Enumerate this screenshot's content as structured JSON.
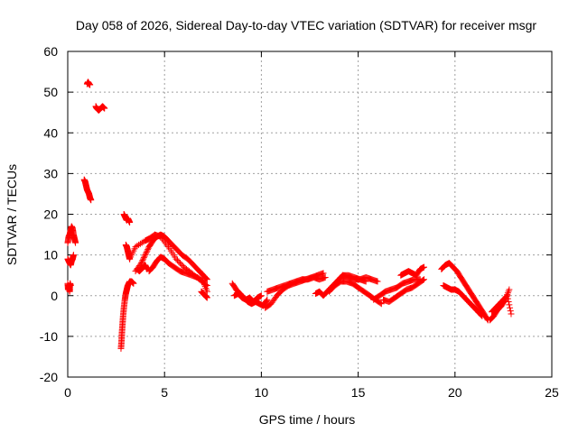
{
  "chart_data": {
    "type": "scatter",
    "title": "Day 058 of 2026, Sidereal Day-to-day VTEC variation (SDTVAR) for receiver msgr",
    "xlabel": "GPS time / hours",
    "ylabel": "SDTVAR / TECUs",
    "xlim": [
      0,
      25
    ],
    "ylim": [
      -20,
      60
    ],
    "xticks": [
      0,
      5,
      10,
      15,
      20,
      25
    ],
    "yticks": [
      -20,
      -10,
      0,
      10,
      20,
      30,
      40,
      50,
      60
    ],
    "grid": true,
    "marker": "+",
    "color": "#ff0000",
    "segments": [
      {
        "name": "arc-early-low",
        "x": [
          0.0,
          0.02,
          0.05,
          0.08,
          0.1,
          0.12,
          0.15
        ],
        "y": [
          3,
          1.5,
          2.5,
          2,
          1,
          3,
          2.5
        ]
      },
      {
        "name": "arc-early-mid",
        "x": [
          0.0,
          0.05,
          0.1,
          0.15,
          0.2,
          0.25,
          0.3
        ],
        "y": [
          9,
          8.5,
          8,
          7.5,
          8.5,
          9,
          10
        ]
      },
      {
        "name": "arc-early-high",
        "x": [
          0.0,
          0.05,
          0.1,
          0.15,
          0.2,
          0.25,
          0.3,
          0.35,
          0.4
        ],
        "y": [
          13,
          14.5,
          15,
          16,
          17,
          16.5,
          15,
          14,
          13
        ]
      },
      {
        "name": "arc-52",
        "x": [
          1.0,
          1.05,
          1.1,
          1.15
        ],
        "y": [
          52,
          52.5,
          52,
          51.8
        ]
      },
      {
        "name": "arc-28",
        "x": [
          0.85,
          0.9,
          0.95,
          1.0,
          1.05,
          1.1,
          1.15,
          1.2
        ],
        "y": [
          28.5,
          28,
          27,
          26,
          25.5,
          25,
          24,
          23.5
        ]
      },
      {
        "name": "arc-46",
        "x": [
          1.45,
          1.5,
          1.6,
          1.7,
          1.8,
          1.9
        ],
        "y": [
          46.5,
          46,
          45.5,
          46,
          46.5,
          46
        ]
      },
      {
        "name": "arc-19",
        "x": [
          2.9,
          2.95,
          3.0,
          3.05,
          3.1,
          3.15,
          3.2
        ],
        "y": [
          20,
          19.5,
          19,
          18.5,
          19,
          18.5,
          18
        ]
      },
      {
        "name": "arc-drop",
        "x": [
          2.75,
          2.78,
          2.8,
          2.83,
          2.86,
          2.9,
          2.95,
          3.0,
          3.05,
          3.1,
          3.2,
          3.3,
          3.4
        ],
        "y": [
          -13,
          -11,
          -9,
          -7,
          -5,
          -3,
          -1,
          0.5,
          1.5,
          2.5,
          3.5,
          3.5,
          3
        ]
      },
      {
        "name": "arc-12",
        "x": [
          3.0,
          3.05,
          3.1,
          3.15,
          3.2
        ],
        "y": [
          12.5,
          12,
          11,
          10,
          9
        ]
      },
      {
        "name": "arc-big-hump",
        "x": [
          3.5,
          3.8,
          4.0,
          4.2,
          4.4,
          4.6,
          4.8,
          5.0,
          5.3,
          5.6,
          5.9,
          6.2,
          6.5,
          6.8,
          7.0,
          7.2
        ],
        "y": [
          6,
          8,
          10,
          12,
          13.5,
          14.5,
          15,
          14.5,
          13,
          11.5,
          10,
          9,
          7.5,
          6,
          5,
          4
        ]
      },
      {
        "name": "arc-hump-lower",
        "x": [
          3.2,
          3.5,
          4.0,
          4.2,
          4.5,
          4.8,
          5.2,
          5.6,
          6.0,
          6.4,
          6.8,
          7.2
        ],
        "y": [
          9,
          12,
          13.5,
          14,
          15,
          14.5,
          12,
          9,
          7,
          5.5,
          4,
          2.5
        ]
      },
      {
        "name": "arc-hump-band",
        "x": [
          4.2,
          4.4,
          4.6,
          4.8,
          5.0,
          5.2,
          5.5,
          5.8,
          6.1,
          6.4,
          6.7,
          7.0,
          7.2
        ],
        "y": [
          6,
          7,
          8.5,
          9.5,
          9,
          8,
          7,
          6,
          5.5,
          5,
          4.5,
          3.5,
          1
        ]
      },
      {
        "name": "arc-hump-cluster",
        "x": [
          3.6,
          3.7,
          3.8,
          3.9,
          4.0,
          4.1
        ],
        "y": [
          6.5,
          6,
          6.5,
          7,
          7.5,
          6.5
        ]
      },
      {
        "name": "arc-hump-tail",
        "x": [
          6.9,
          7.0,
          7.1,
          7.2
        ],
        "y": [
          1,
          0.5,
          0,
          -0.5
        ]
      },
      {
        "name": "arc-9-11",
        "x": [
          8.5,
          8.7,
          8.9,
          9.1,
          9.3,
          9.5,
          9.7,
          9.9,
          10.1,
          10.3
        ],
        "y": [
          3,
          1.5,
          0.5,
          -0.5,
          -1.5,
          -2,
          -1.5,
          -2,
          -2.5,
          -1
        ]
      },
      {
        "name": "arc-9-11-b",
        "x": [
          8.6,
          8.8,
          9.0,
          9.2,
          9.4,
          9.6,
          9.8,
          10.0
        ],
        "y": [
          0,
          0.5,
          -0.5,
          -1,
          -0.5,
          -1.5,
          -0.5,
          0
        ]
      },
      {
        "name": "arc-11-13",
        "x": [
          10.2,
          10.5,
          10.8,
          11.1,
          11.4,
          11.7,
          12.0,
          12.3,
          12.6,
          12.9,
          13.2
        ],
        "y": [
          -3,
          -2,
          0,
          1.5,
          2.5,
          3,
          3.5,
          4,
          4.5,
          5,
          5.5
        ]
      },
      {
        "name": "arc-11-13-b",
        "x": [
          10.3,
          10.6,
          10.9,
          11.2,
          11.5,
          11.8,
          12.1,
          12.4,
          12.7,
          13.0,
          13.3
        ],
        "y": [
          1,
          1.5,
          2,
          2.5,
          3,
          3.5,
          4,
          4,
          4.5,
          4,
          4.5
        ]
      },
      {
        "name": "arc-13-15",
        "x": [
          12.8,
          13.0,
          13.2,
          13.4,
          13.6,
          13.8,
          14.0,
          14.2,
          14.5,
          14.8,
          15.1,
          15.4
        ],
        "y": [
          0.5,
          1,
          0,
          1,
          2,
          3,
          4,
          5,
          5,
          4.5,
          4,
          3.5
        ]
      },
      {
        "name": "arc-13-15-b",
        "x": [
          13.5,
          13.8,
          14.1,
          14.4,
          14.7,
          15.0,
          15.3,
          15.6,
          15.9,
          16.2
        ],
        "y": [
          1,
          2.5,
          3.5,
          3.5,
          3,
          2,
          1,
          0,
          -1,
          -2
        ]
      },
      {
        "name": "arc-14-16",
        "x": [
          14.2,
          14.5,
          14.8,
          15.1,
          15.4,
          15.7,
          16.0
        ],
        "y": [
          5,
          4.5,
          4,
          4,
          4.5,
          4,
          3.5
        ]
      },
      {
        "name": "arc-16-18",
        "x": [
          15.8,
          16.1,
          16.4,
          16.7,
          17.0,
          17.3,
          17.6,
          17.9,
          18.2
        ],
        "y": [
          -1,
          0,
          1,
          1.5,
          2,
          3,
          3.5,
          4,
          4
        ]
      },
      {
        "name": "arc-16-18-b",
        "x": [
          16.3,
          16.6,
          16.9,
          17.2,
          17.5,
          17.8,
          18.1,
          18.4
        ],
        "y": [
          -1,
          -1.5,
          -0.5,
          0.5,
          1.5,
          2,
          3,
          4
        ]
      },
      {
        "name": "arc-16-18-c",
        "x": [
          17.2,
          17.4,
          17.6,
          17.8,
          18.0,
          18.2,
          18.4
        ],
        "y": [
          5,
          5.5,
          6,
          5.5,
          5,
          6.5,
          7
        ]
      },
      {
        "name": "arc-19-22",
        "x": [
          19.3,
          19.5,
          19.7,
          19.9,
          20.1,
          20.3,
          20.5,
          20.7,
          20.9,
          21.1,
          21.3,
          21.5,
          21.7
        ],
        "y": [
          6.5,
          7.5,
          8,
          7,
          6,
          4.5,
          3,
          1.5,
          0,
          -1.5,
          -3,
          -4.5,
          -6
        ]
      },
      {
        "name": "arc-19-22-b",
        "x": [
          19.4,
          19.6,
          19.8,
          20.0,
          20.2,
          20.4,
          20.6,
          20.8,
          21.0,
          21.2,
          21.4
        ],
        "y": [
          2.5,
          2,
          1.5,
          1.5,
          1,
          0,
          -1,
          -2,
          -3,
          -4,
          -5
        ]
      },
      {
        "name": "arc-22-23",
        "x": [
          21.8,
          22.0,
          22.2,
          22.4,
          22.6,
          22.8
        ],
        "y": [
          -6,
          -5,
          -3.5,
          -2.5,
          -1,
          1.5
        ]
      },
      {
        "name": "arc-22-23-b",
        "x": [
          21.9,
          22.1,
          22.3,
          22.5,
          22.7,
          22.9
        ],
        "y": [
          -4,
          -3,
          -2,
          -1,
          0,
          -4.5
        ]
      }
    ]
  }
}
